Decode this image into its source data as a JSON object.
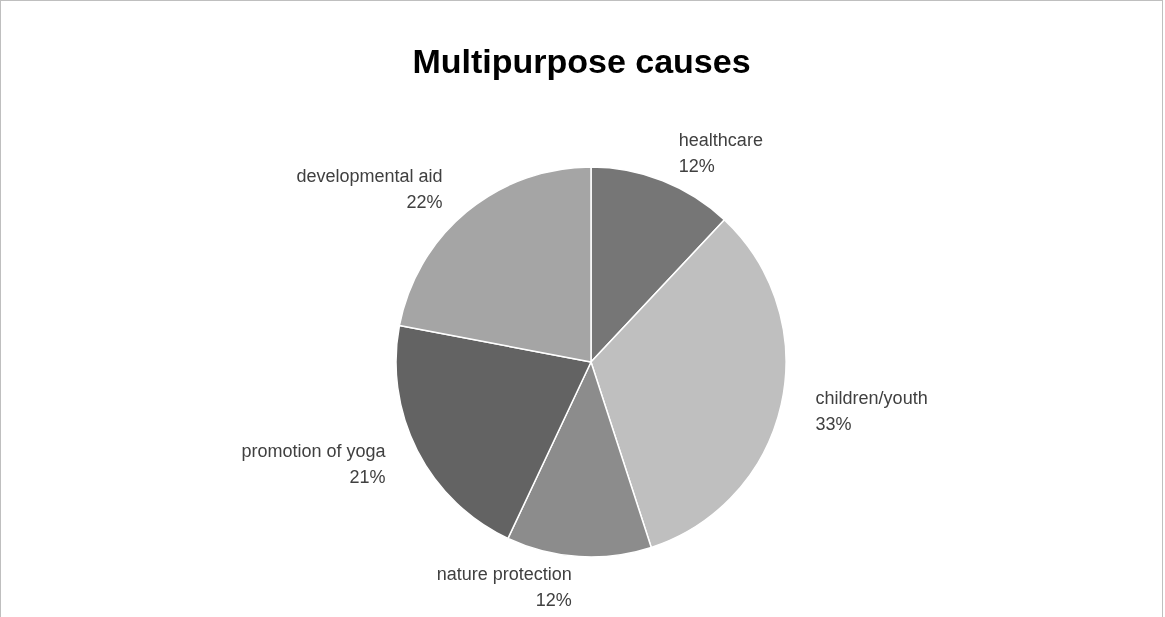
{
  "chart_data": {
    "type": "pie",
    "title": "Multipurpose causes",
    "categories": [
      "healthcare",
      "children/youth",
      "nature protection",
      "promotion of yoga",
      "developmental aid"
    ],
    "values": [
      12,
      33,
      12,
      21,
      22
    ],
    "value_labels": [
      "12%",
      "33%",
      "12%",
      "21%",
      "22%"
    ],
    "colors": [
      "#767676",
      "#bfbfbf",
      "#8c8c8c",
      "#636363",
      "#a5a5a5"
    ],
    "legend": false
  }
}
